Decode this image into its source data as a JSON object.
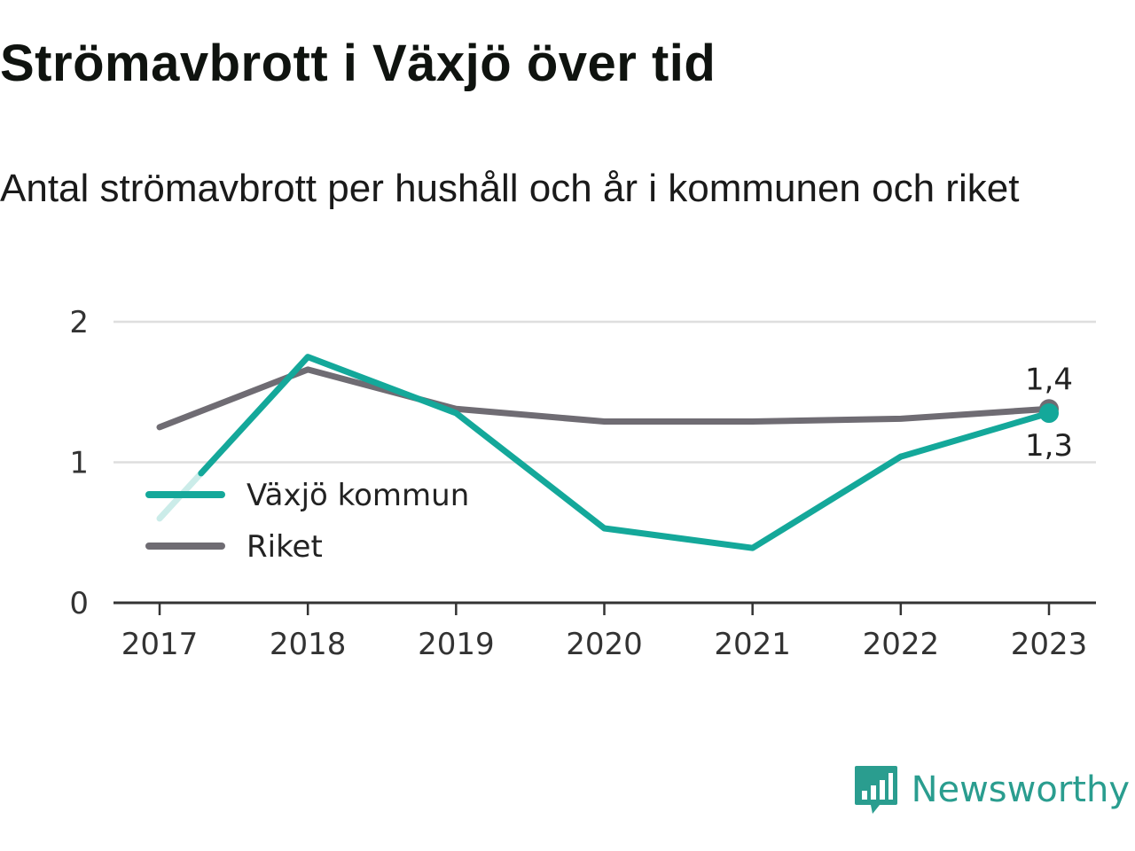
{
  "title": "Strömavbrott i Växjö över tid",
  "subtitle": "Antal strömavbrott per hushåll och år i kommunen och riket",
  "brand": "Newsworthy",
  "chart_data": {
    "type": "line",
    "x": [
      "2017",
      "2018",
      "2019",
      "2020",
      "2021",
      "2022",
      "2023"
    ],
    "ylim": [
      0,
      2
    ],
    "yticks": [
      0,
      1,
      2
    ],
    "grid": true,
    "legend_position": "left",
    "series": [
      {
        "name": "Växjö kommun",
        "color": "#14a89a",
        "values": [
          0.6,
          1.75,
          1.35,
          0.53,
          0.39,
          1.04,
          1.35
        ],
        "end_label": "1,3"
      },
      {
        "name": "Riket",
        "color": "#6f6c73",
        "values": [
          1.25,
          1.66,
          1.38,
          1.29,
          1.29,
          1.31,
          1.38
        ],
        "end_label": "1,4"
      }
    ]
  }
}
